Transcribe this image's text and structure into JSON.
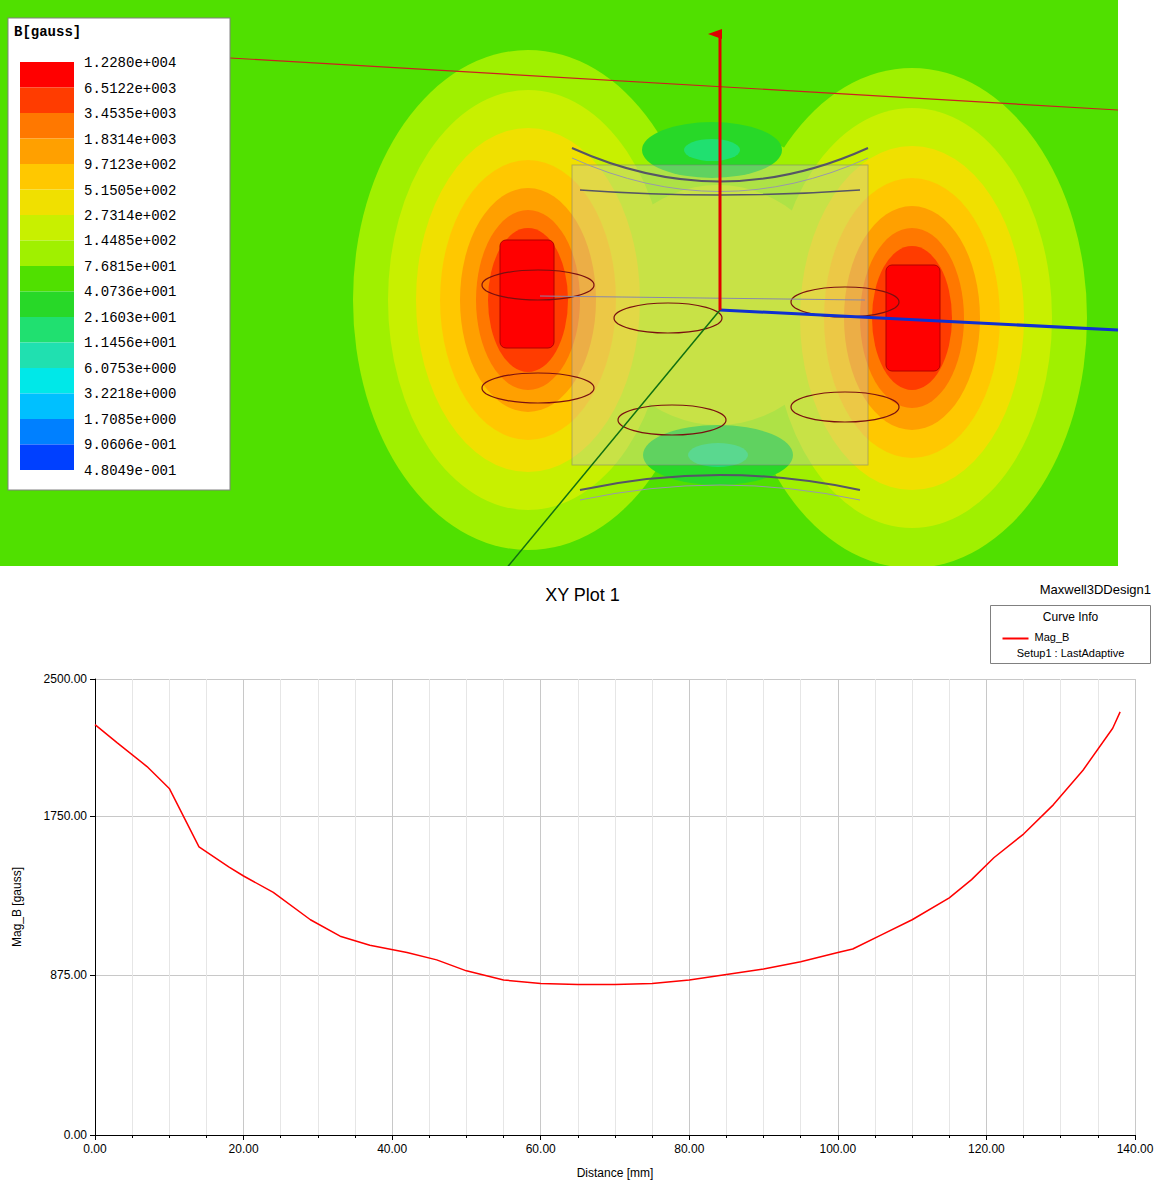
{
  "field_plot": {
    "title": "B[gauss]",
    "colorbar": {
      "ticks": [
        {
          "value": 12280,
          "label": "1.2280e+004"
        },
        {
          "value": 6512.2,
          "label": "6.5122e+003"
        },
        {
          "value": 3453.5,
          "label": "3.4535e+003"
        },
        {
          "value": 1831.4,
          "label": "1.8314e+003"
        },
        {
          "value": 971.23,
          "label": "9.7123e+002"
        },
        {
          "value": 515.05,
          "label": "5.1505e+002"
        },
        {
          "value": 273.14,
          "label": "2.7314e+002"
        },
        {
          "value": 144.85,
          "label": "1.4485e+002"
        },
        {
          "value": 76.815,
          "label": "7.6815e+001"
        },
        {
          "value": 40.736,
          "label": "4.0736e+001"
        },
        {
          "value": 21.603,
          "label": "2.1603e+001"
        },
        {
          "value": 11.456,
          "label": "1.1456e+001"
        },
        {
          "value": 6.0753,
          "label": "6.0753e+000"
        },
        {
          "value": 3.2218,
          "label": "3.2218e+000"
        },
        {
          "value": 1.7085,
          "label": "1.7085e+000"
        },
        {
          "value": 0.90606,
          "label": "9.0606e-001"
        },
        {
          "value": 0.48049,
          "label": "4.8049e-001"
        }
      ],
      "colors": [
        "#ff0000",
        "#ff3c00",
        "#ff7800",
        "#ffa000",
        "#ffc800",
        "#f0e000",
        "#c8f000",
        "#a0f000",
        "#50e000",
        "#28d828",
        "#20e070",
        "#20e0b0",
        "#00e8e8",
        "#00c0ff",
        "#0080ff",
        "#0040ff"
      ]
    }
  },
  "chart_data": {
    "type": "line",
    "title": "XY Plot 1",
    "subtitle": "Maxwell3DDesign1",
    "x_label": "Distance [mm]",
    "y_label": "Mag_B [gauss]",
    "legend": "upper right",
    "legend_title": "Curve Info",
    "x": [
      0,
      3,
      7,
      10,
      14,
      18,
      20,
      24,
      29,
      33,
      37,
      42,
      46,
      50,
      55,
      60,
      65,
      70,
      75,
      80,
      85,
      90,
      95,
      100,
      102,
      106,
      110,
      115,
      118,
      121,
      125,
      129,
      133,
      137,
      138
    ],
    "series": [
      {
        "name": "Mag_B",
        "description": "Setup1 : LastAdaptive",
        "color": "#ff0000",
        "values": [
          2250,
          2150,
          2020,
          1900,
          1580,
          1470,
          1420,
          1330,
          1180,
          1090,
          1040,
          1000,
          960,
          900,
          850,
          830,
          825,
          825,
          830,
          850,
          880,
          910,
          950,
          1000,
          1020,
          1100,
          1180,
          1300,
          1400,
          1520,
          1650,
          1810,
          2000,
          2230,
          2320
        ]
      }
    ],
    "xlim": [
      0,
      140
    ],
    "xticks": [
      {
        "value": 0,
        "label": "0.00"
      },
      {
        "value": 20,
        "label": "20.00"
      },
      {
        "value": 40,
        "label": "40.00"
      },
      {
        "value": 60,
        "label": "60.00"
      },
      {
        "value": 80,
        "label": "80.00"
      },
      {
        "value": 100,
        "label": "100.00"
      },
      {
        "value": 120,
        "label": "120.00"
      },
      {
        "value": 140,
        "label": "140.00"
      }
    ],
    "ylim": [
      0,
      2500
    ],
    "yticks": [
      {
        "value": 0,
        "label": "0.00"
      },
      {
        "value": 875,
        "label": "875.00"
      },
      {
        "value": 1750,
        "label": "1750.00"
      },
      {
        "value": 2500,
        "label": "2500.00"
      }
    ],
    "grid": true
  }
}
